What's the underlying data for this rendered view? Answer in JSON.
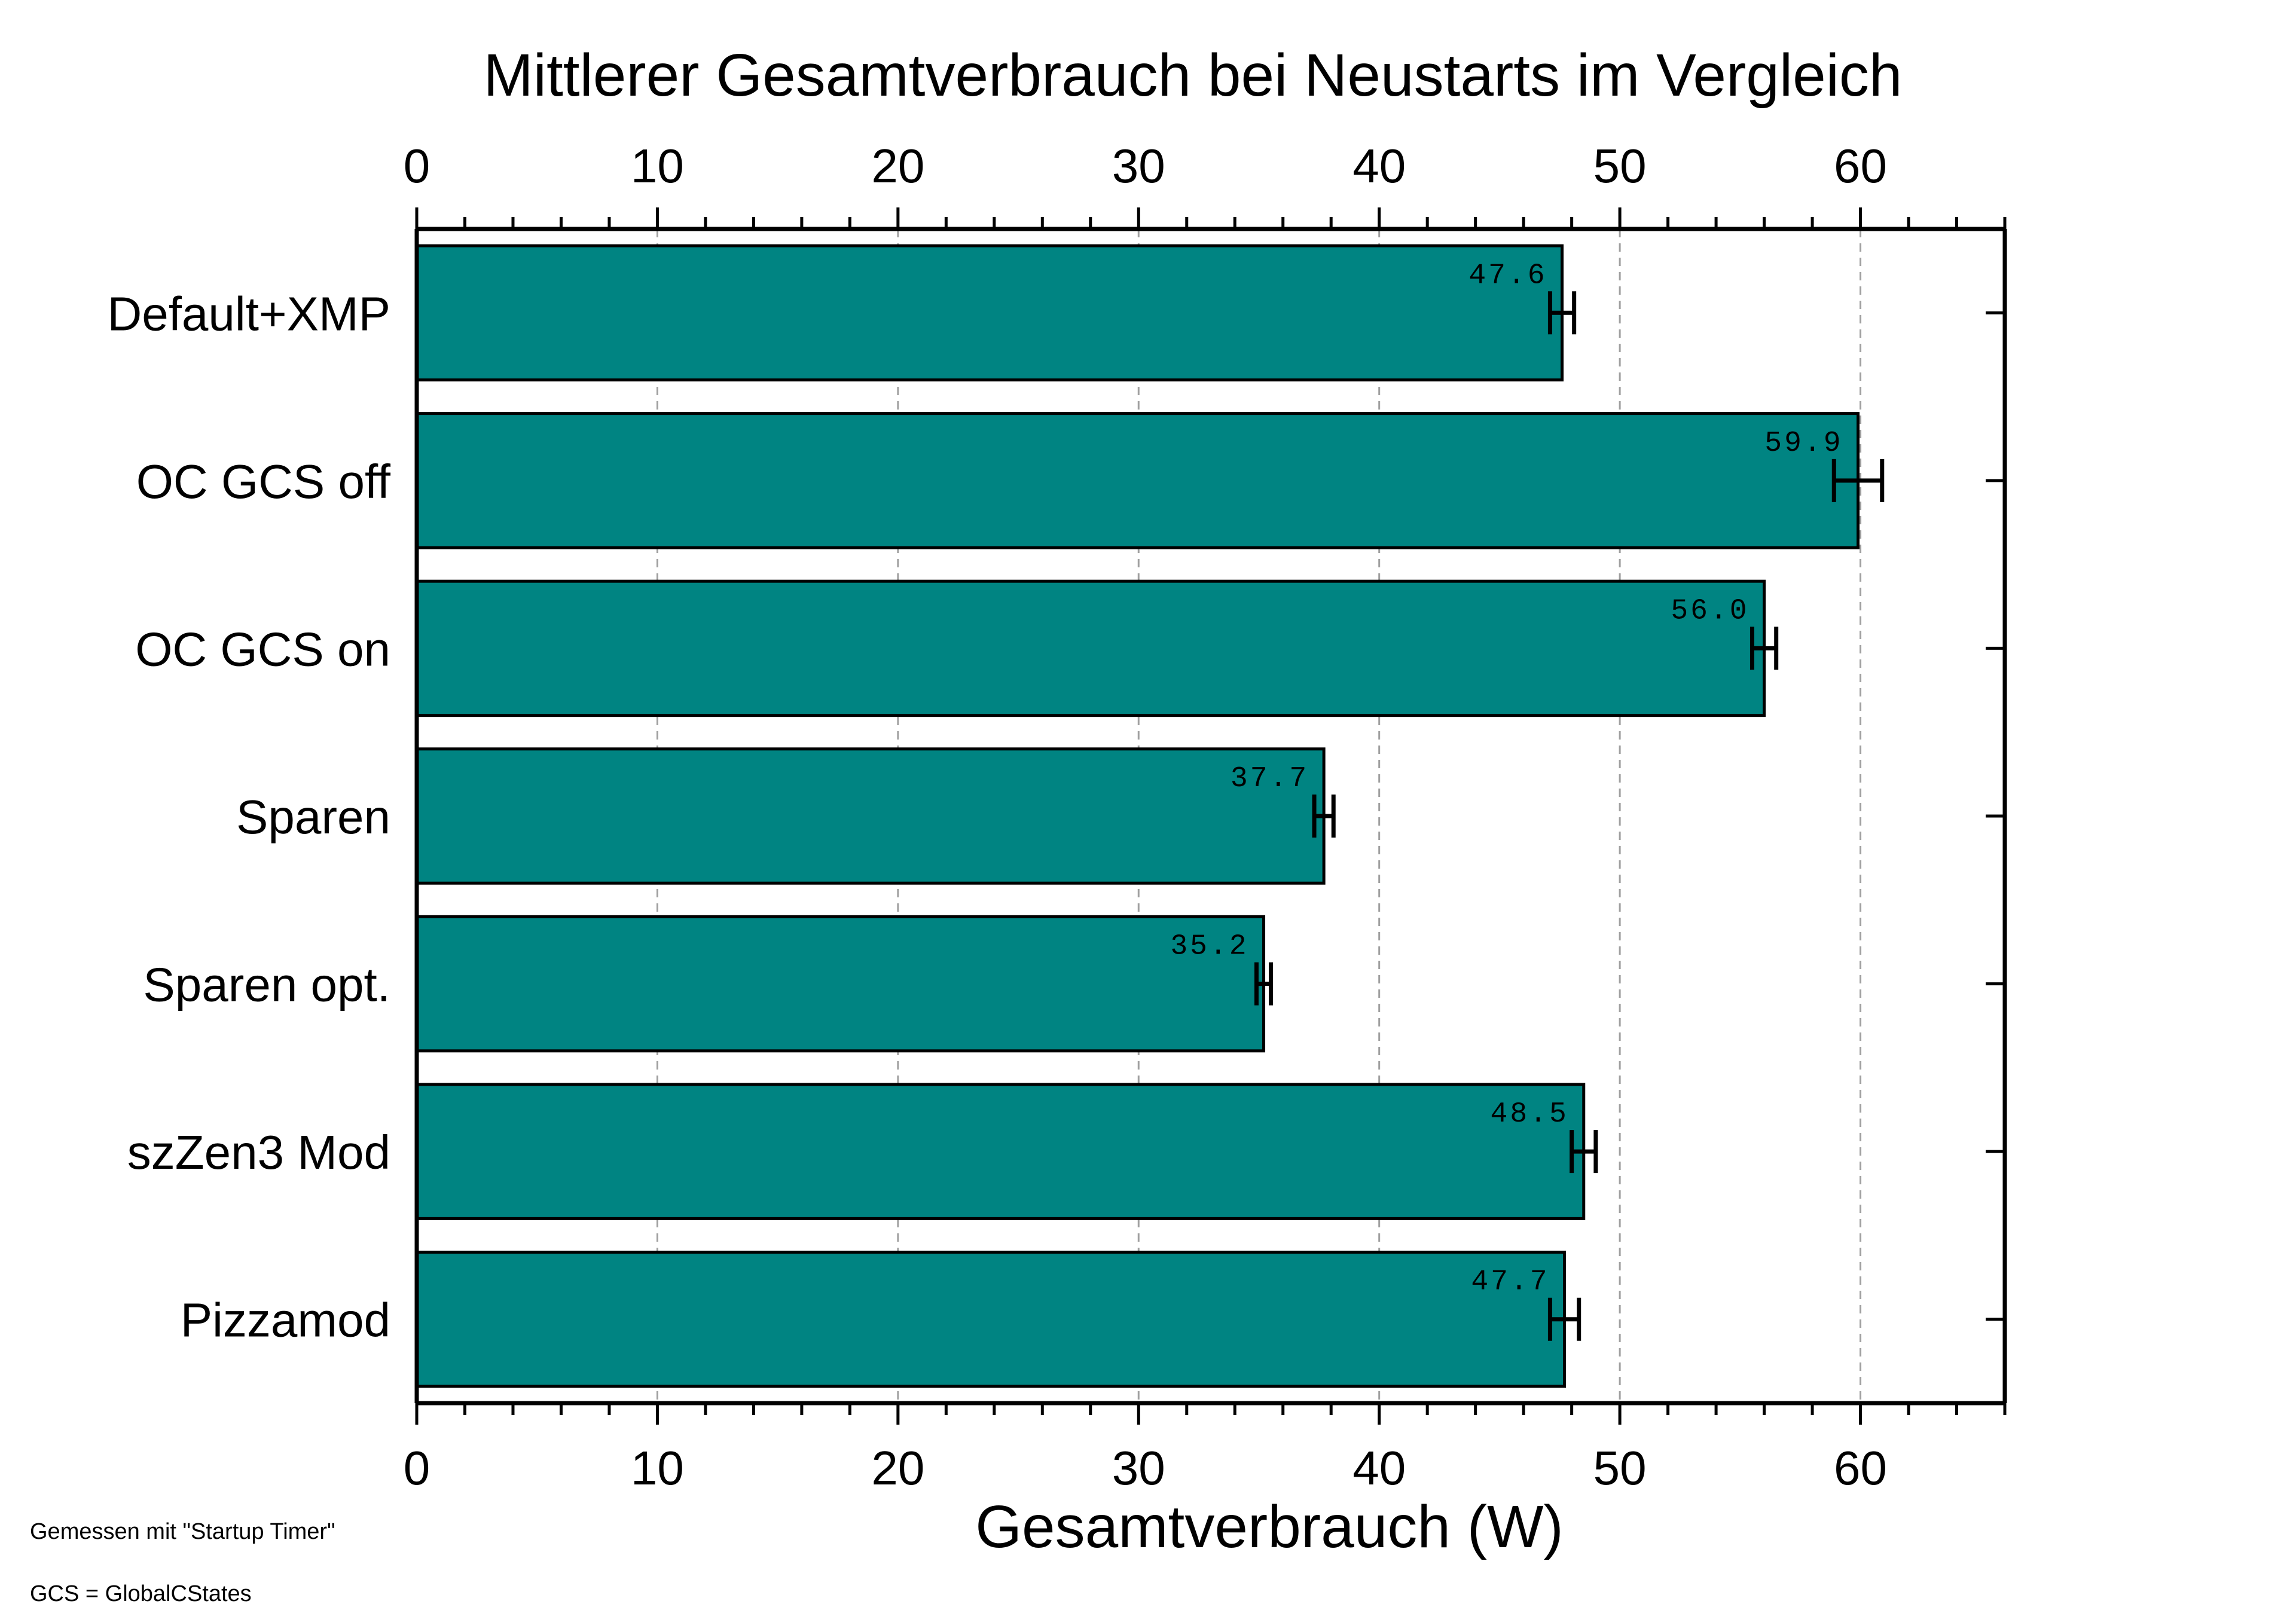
{
  "chart_data": {
    "type": "bar",
    "orientation": "horizontal",
    "title": "Mittlerer Gesamtverbrauch bei Neustarts im Vergleich",
    "xlabel": "Gesamtverbrauch (W)",
    "ylabel": "",
    "xlim": [
      0,
      66
    ],
    "xticks": [
      0,
      10,
      20,
      30,
      40,
      50,
      60
    ],
    "grid": "vertical-dashed",
    "categories": [
      "Default+XMP",
      "OC GCS off",
      "OC GCS on",
      "Sparen",
      "Sparen opt.",
      "szZen3 Mod",
      "Pizzamod"
    ],
    "values": [
      47.6,
      59.9,
      56.0,
      37.7,
      35.2,
      48.5,
      47.7
    ],
    "value_labels": [
      "47.6",
      "59.9",
      "56.0",
      "37.7",
      "35.2",
      "48.5",
      "47.7"
    ],
    "errors": [
      0.5,
      1.0,
      0.5,
      0.4,
      0.3,
      0.5,
      0.6
    ],
    "bar_color": "#008482"
  },
  "notes": {
    "line1": "Gemessen mit \"Startup Timer\"",
    "line2": "GCS = GlobalCStates"
  }
}
